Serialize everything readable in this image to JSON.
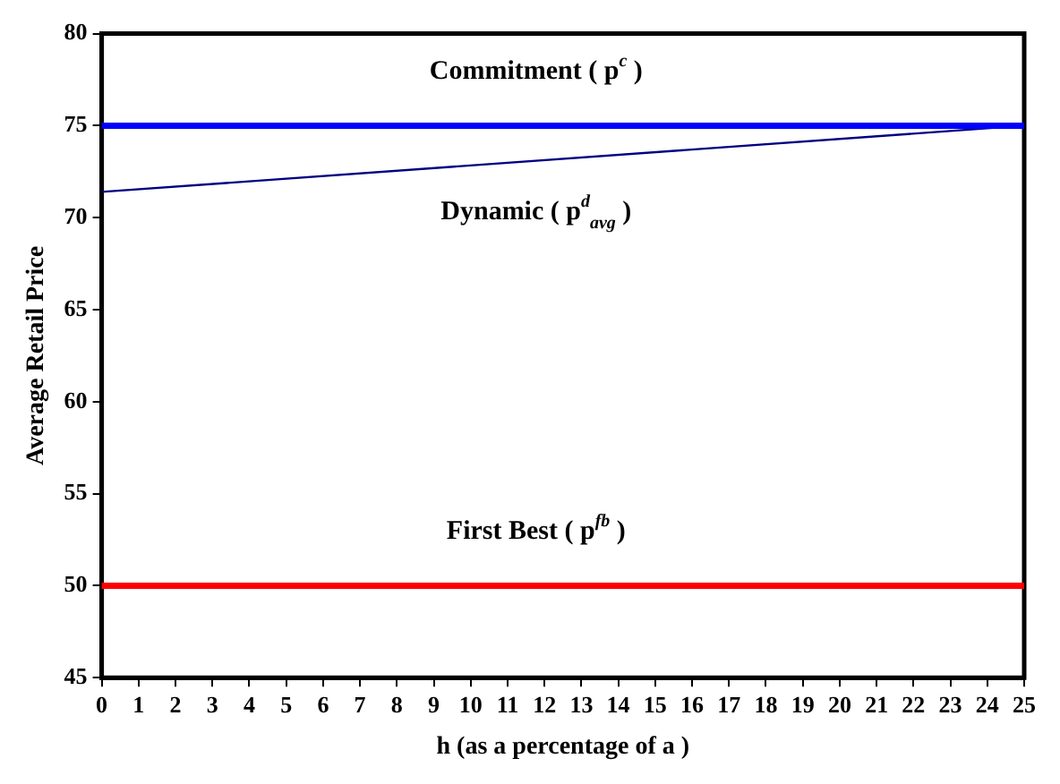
{
  "chart_data": {
    "type": "line",
    "xlabel": "h (as a percentage of a )",
    "ylabel": "Average Retail Price",
    "xlim": [
      0,
      25
    ],
    "xticks": [
      0,
      1,
      2,
      3,
      4,
      5,
      6,
      7,
      8,
      9,
      10,
      11,
      12,
      13,
      14,
      15,
      16,
      17,
      18,
      19,
      20,
      21,
      22,
      23,
      24,
      25
    ],
    "ylim": [
      45,
      80
    ],
    "yticks": [
      45,
      50,
      55,
      60,
      65,
      70,
      75,
      80
    ],
    "grid": false,
    "legend": false,
    "marker": "none",
    "x": [
      0,
      25
    ],
    "series": [
      {
        "name": "Commitment ( p$^{c}$ )",
        "color": "#0000ff",
        "values": [
          75,
          75
        ]
      },
      {
        "name": "Dynamic ( p$^{d}$$_{avg}$ )",
        "color": "#000080",
        "values": [
          71.4,
          75
        ]
      },
      {
        "name": "First Best ( p$^{fb}$ )",
        "color": "#ff0000",
        "values": [
          50,
          50
        ]
      }
    ]
  }
}
